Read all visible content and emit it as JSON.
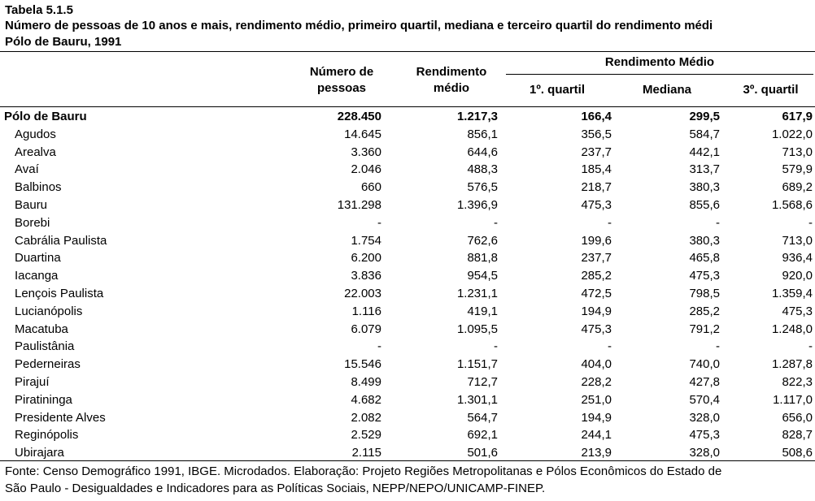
{
  "header": {
    "table_id": "Tabela 5.1.5",
    "title": "Número de pessoas de 10 anos e mais, rendimento médio, primeiro quartil, mediana e terceiro quartil do rendimento médi",
    "subtitle": "Pólo de Bauru, 1991"
  },
  "columns": {
    "num_line1": "Número de",
    "num_line2": "pessoas",
    "rend_line1": "Rendimento",
    "rend_line2": "médio",
    "group": "Rendimento Médio",
    "q1": "1º. quartil",
    "median": "Mediana",
    "q3": "3º. quartil"
  },
  "rows": [
    {
      "name": "Pólo de Bauru",
      "n": "228.450",
      "r": "1.217,3",
      "q1": "166,4",
      "med": "299,5",
      "q3": "617,9",
      "total": true
    },
    {
      "name": "Agudos",
      "n": "14.645",
      "r": "856,1",
      "q1": "356,5",
      "med": "584,7",
      "q3": "1.022,0"
    },
    {
      "name": "Arealva",
      "n": "3.360",
      "r": "644,6",
      "q1": "237,7",
      "med": "442,1",
      "q3": "713,0"
    },
    {
      "name": "Avaí",
      "n": "2.046",
      "r": "488,3",
      "q1": "185,4",
      "med": "313,7",
      "q3": "579,9"
    },
    {
      "name": "Balbinos",
      "n": "660",
      "r": "576,5",
      "q1": "218,7",
      "med": "380,3",
      "q3": "689,2"
    },
    {
      "name": "Bauru",
      "n": "131.298",
      "r": "1.396,9",
      "q1": "475,3",
      "med": "855,6",
      "q3": "1.568,6"
    },
    {
      "name": "Borebi",
      "n": "-",
      "r": "-",
      "q1": "-",
      "med": "-",
      "q3": "-"
    },
    {
      "name": "Cabrália Paulista",
      "n": "1.754",
      "r": "762,6",
      "q1": "199,6",
      "med": "380,3",
      "q3": "713,0"
    },
    {
      "name": "Duartina",
      "n": "6.200",
      "r": "881,8",
      "q1": "237,7",
      "med": "465,8",
      "q3": "936,4"
    },
    {
      "name": "Iacanga",
      "n": "3.836",
      "r": "954,5",
      "q1": "285,2",
      "med": "475,3",
      "q3": "920,0"
    },
    {
      "name": "Lençois Paulista",
      "n": "22.003",
      "r": "1.231,1",
      "q1": "472,5",
      "med": "798,5",
      "q3": "1.359,4"
    },
    {
      "name": "Lucianópolis",
      "n": "1.116",
      "r": "419,1",
      "q1": "194,9",
      "med": "285,2",
      "q3": "475,3"
    },
    {
      "name": "Macatuba",
      "n": "6.079",
      "r": "1.095,5",
      "q1": "475,3",
      "med": "791,2",
      "q3": "1.248,0"
    },
    {
      "name": "Paulistânia",
      "n": "-",
      "r": "-",
      "q1": "-",
      "med": "-",
      "q3": "-"
    },
    {
      "name": "Pederneiras",
      "n": "15.546",
      "r": "1.151,7",
      "q1": "404,0",
      "med": "740,0",
      "q3": "1.287,8"
    },
    {
      "name": "Pirajuí",
      "n": "8.499",
      "r": "712,7",
      "q1": "228,2",
      "med": "427,8",
      "q3": "822,3"
    },
    {
      "name": "Piratininga",
      "n": "4.682",
      "r": "1.301,1",
      "q1": "251,0",
      "med": "570,4",
      "q3": "1.117,0"
    },
    {
      "name": "Presidente Alves",
      "n": "2.082",
      "r": "564,7",
      "q1": "194,9",
      "med": "328,0",
      "q3": "656,0"
    },
    {
      "name": "Reginópolis",
      "n": "2.529",
      "r": "692,1",
      "q1": "244,1",
      "med": "475,3",
      "q3": "828,7"
    },
    {
      "name": "Ubirajara",
      "n": "2.115",
      "r": "501,6",
      "q1": "213,9",
      "med": "328,0",
      "q3": "508,6"
    }
  ],
  "footer": {
    "line1": "Fonte: Censo Demográfico 1991, IBGE. Microdados. Elaboração: Projeto Regiões Metropolitanas e Pólos Econômicos do Estado de",
    "line2": "São Paulo - Desigualdades e Indicadores para as Políticas Sociais, NEPP/NEPO/UNICAMP-FINEP."
  }
}
